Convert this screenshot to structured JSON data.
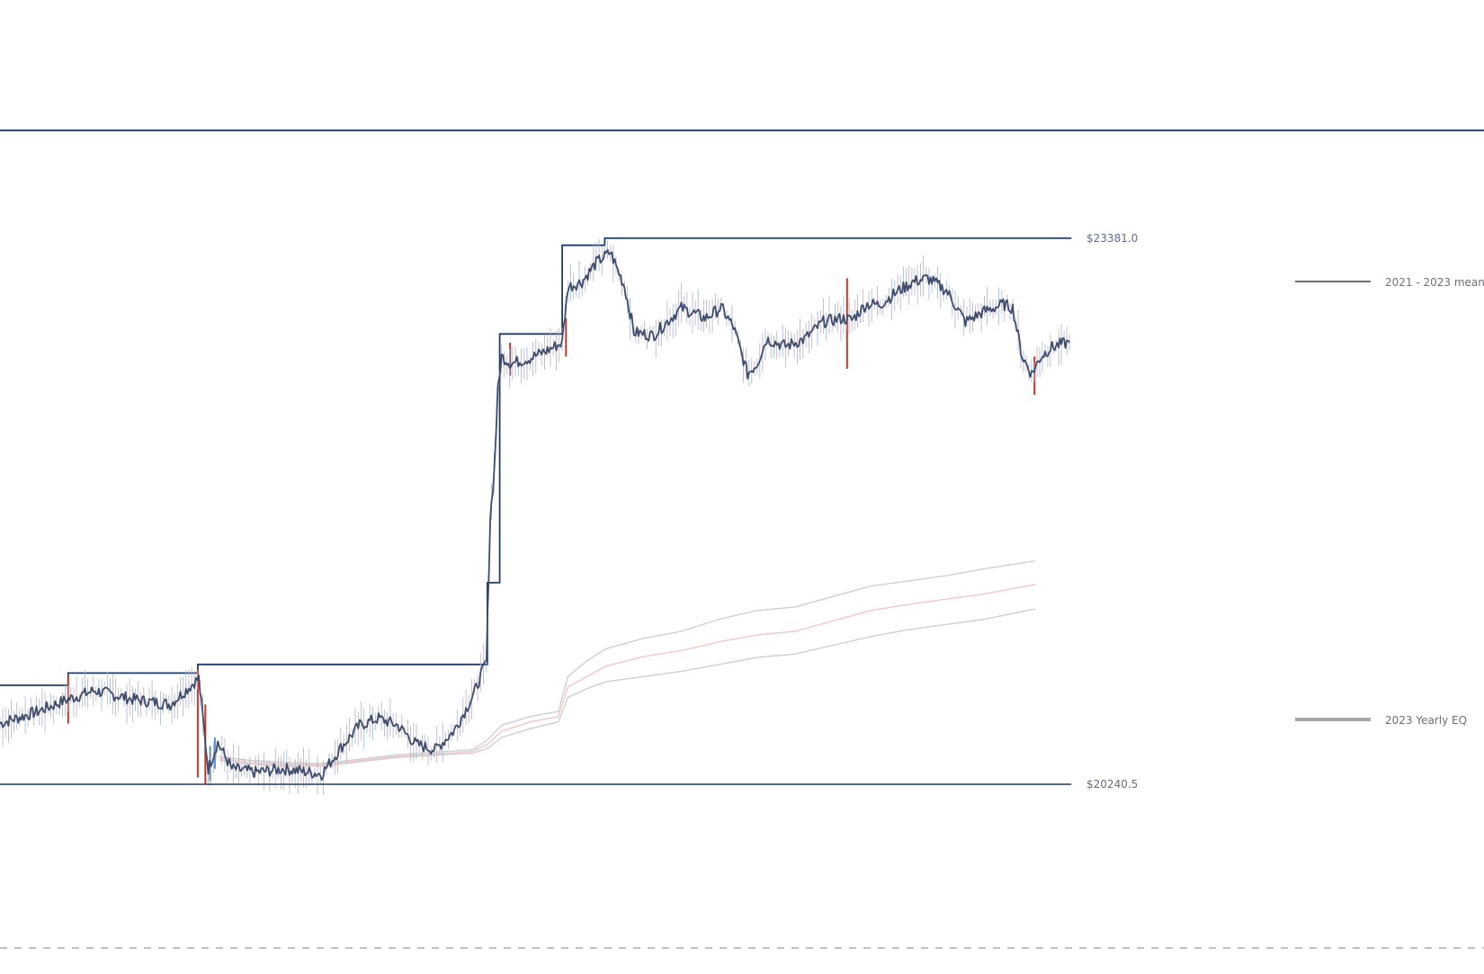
{
  "chart_data": {
    "type": "line",
    "title": "",
    "xlabel": "",
    "ylabel": "",
    "ylim": [
      19150,
      24750
    ],
    "grid": false,
    "legend_position": "right",
    "levels": {
      "top_line": 24000,
      "high": {
        "value": 23381.0,
        "label": "$23381.0"
      },
      "low": {
        "value": 20240.5,
        "label": "$20240.5"
      },
      "dashed": 19300
    },
    "legend": [
      {
        "label": "2021 - 2023 mean",
        "color": "#6b6f78"
      },
      {
        "label": "2023 Yearly EQ",
        "color": "#a9a6b0"
      }
    ],
    "colors": {
      "price": "#3f4b6b",
      "level_line": "#2f4a6e",
      "high_marker": "#1f3b6e",
      "wick_down": "#c0392b",
      "wick_up": "#5b8ec9",
      "band_outer": "#cfcfcf",
      "band_mid": "#f0c8c8",
      "dashed": "#9a9a9a"
    },
    "series": [
      {
        "x": [
          0,
          40,
          72,
          100,
          140,
          180,
          210,
          220,
          230,
          245,
          270,
          300,
          340,
          360,
          380,
          400,
          420,
          440,
          460,
          480,
          500,
          514,
          518,
          522,
          526,
          530,
          540,
          560,
          580,
          594,
          600,
          615,
          630,
          645,
          660,
          670,
          690,
          720,
          745,
          762,
          775,
          790,
          800,
          810,
          830,
          850,
          870,
          890,
          900,
          915,
          930,
          950,
          965,
          980,
          1000,
          1020,
          1040,
          1060,
          1070,
          1080,
          1090,
          1100,
          1110,
          1120,
          1130
        ],
        "values": [
          20590,
          20660,
          20730,
          20780,
          20730,
          20700,
          20850,
          20330,
          20480,
          20330,
          20310,
          20330,
          20300,
          20450,
          20580,
          20620,
          20580,
          20470,
          20440,
          20550,
          20750,
          20950,
          21780,
          22020,
          22500,
          22700,
          22660,
          22690,
          22740,
          22780,
          23100,
          23130,
          23240,
          23300,
          23100,
          22840,
          22820,
          22980,
          22920,
          22980,
          22870,
          22600,
          22660,
          22800,
          22760,
          22800,
          22900,
          22920,
          22910,
          23000,
          23000,
          23080,
          23130,
          23150,
          23080,
          22900,
          22960,
          23000,
          22980,
          22700,
          22600,
          22700,
          22750,
          22770,
          22780
        ]
      }
    ],
    "steps": [
      {
        "x0": 0,
        "x1": 72,
        "value": 20810
      },
      {
        "x0": 72,
        "x1": 209,
        "value": 20880
      },
      {
        "x0": 209,
        "x1": 515,
        "value": 20930
      },
      {
        "x0": 515,
        "x1": 528,
        "value": 21400
      },
      {
        "x0": 528,
        "x1": 594,
        "value": 22830
      },
      {
        "x0": 594,
        "x1": 639,
        "value": 23340
      },
      {
        "x0": 639,
        "x1": 1132,
        "value": 23381
      }
    ],
    "bands": {
      "x": [
        232,
        260,
        300,
        340,
        380,
        420,
        460,
        500,
        516,
        530,
        560,
        590,
        600,
        620,
        640,
        680,
        720,
        760,
        800,
        840,
        880,
        920,
        960,
        1000,
        1040,
        1094
      ],
      "upper": [
        20400,
        20380,
        20365,
        20360,
        20385,
        20410,
        20425,
        20440,
        20500,
        20580,
        20630,
        20660,
        20860,
        20950,
        21020,
        21080,
        21120,
        21190,
        21240,
        21260,
        21320,
        21380,
        21410,
        21440,
        21480,
        21525
      ],
      "mid": [
        20390,
        20370,
        20355,
        20352,
        20377,
        20402,
        20415,
        20430,
        20475,
        20545,
        20600,
        20630,
        20800,
        20860,
        20920,
        20975,
        21010,
        21060,
        21100,
        21120,
        21180,
        21240,
        21275,
        21305,
        21335,
        21390
      ],
      "lower": [
        20380,
        20360,
        20345,
        20345,
        20370,
        20395,
        20408,
        20420,
        20450,
        20510,
        20560,
        20600,
        20740,
        20790,
        20830,
        20860,
        20890,
        20930,
        20970,
        20990,
        21040,
        21090,
        21130,
        21160,
        21190,
        21250
      ]
    },
    "wicks": [
      {
        "x": 72,
        "high": 20870,
        "low": 20590,
        "dir": "down"
      },
      {
        "x": 209,
        "high": 20900,
        "low": 20280,
        "dir": "down"
      },
      {
        "x": 217,
        "high": 20700,
        "low": 20240,
        "dir": "down"
      },
      {
        "x": 222,
        "high": 20460,
        "low": 20260,
        "dir": "up"
      },
      {
        "x": 227,
        "high": 20510,
        "low": 20330,
        "dir": "up"
      },
      {
        "x": 539,
        "high": 22780,
        "low": 22590,
        "dir": "down"
      },
      {
        "x": 598,
        "high": 22920,
        "low": 22700,
        "dir": "down"
      },
      {
        "x": 895,
        "high": 23150,
        "low": 22630,
        "dir": "down"
      },
      {
        "x": 1093,
        "high": 22700,
        "low": 22480,
        "dir": "down"
      }
    ]
  }
}
